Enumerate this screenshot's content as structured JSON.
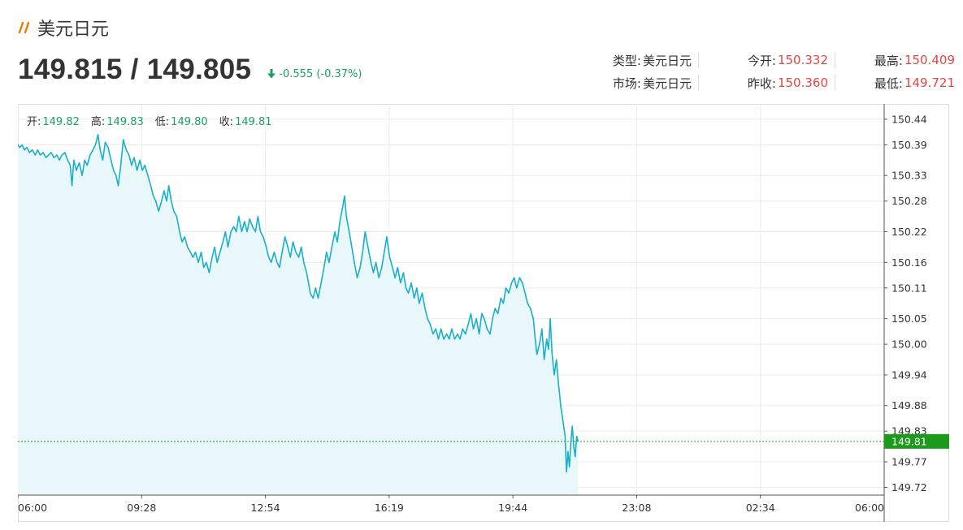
{
  "header": {
    "title": "美元日元",
    "price": "149.815 / 149.805",
    "change": "-0.555 (-0.37%)"
  },
  "info": {
    "type_label": "类型:",
    "type_value": "美元日元",
    "open_label": "今开:",
    "open_value": "150.332",
    "high_label": "最高:",
    "high_value": "150.409",
    "market_label": "市场:",
    "market_value": "美元日元",
    "prev_close_label": "昨收:",
    "prev_close_value": "150.360",
    "low_label": "最低:",
    "low_value": "149.721"
  },
  "ohlc": {
    "open_label": "开:",
    "open": "149.82",
    "high_label": "高:",
    "high": "149.83",
    "low_label": "低:",
    "low": "149.80",
    "close_label": "收:",
    "close": "149.81"
  },
  "colors": {
    "line": "#19b0c8",
    "fill": "#e8f8fa",
    "down": "#1aa260",
    "up": "#e64545",
    "current_price_tag": "#1c9a1c",
    "title_icon": "#f07c00"
  },
  "chart_data": {
    "type": "area",
    "x_ticks": [
      "06:00",
      "09:28",
      "12:54",
      "16:19",
      "19:44",
      "23:08",
      "02:34",
      "06:00"
    ],
    "y_ticks": [
      "150.44",
      "150.39",
      "150.33",
      "150.28",
      "150.22",
      "150.16",
      "150.11",
      "150.05",
      "150.00",
      "149.94",
      "149.88",
      "149.83",
      "149.77",
      "149.72"
    ],
    "ylim": [
      149.705,
      150.47
    ],
    "xlim_hours": [
      0,
      24
    ],
    "current_price": "149.81",
    "grid": true,
    "series": [
      {
        "values": [
          [
            0.0,
            150.39
          ],
          [
            0.05,
            150.385
          ],
          [
            0.12,
            150.39
          ],
          [
            0.18,
            150.38
          ],
          [
            0.25,
            150.385
          ],
          [
            0.32,
            150.375
          ],
          [
            0.4,
            150.38
          ],
          [
            0.48,
            150.37
          ],
          [
            0.55,
            150.38
          ],
          [
            0.62,
            150.37
          ],
          [
            0.7,
            150.375
          ],
          [
            0.78,
            150.365
          ],
          [
            0.85,
            150.37
          ],
          [
            0.92,
            150.375
          ],
          [
            1.0,
            150.365
          ],
          [
            1.08,
            150.37
          ],
          [
            1.15,
            150.36
          ],
          [
            1.22,
            150.37
          ],
          [
            1.3,
            150.375
          ],
          [
            1.38,
            150.36
          ],
          [
            1.45,
            150.35
          ],
          [
            1.5,
            150.31
          ],
          [
            1.55,
            150.36
          ],
          [
            1.62,
            150.34
          ],
          [
            1.7,
            150.355
          ],
          [
            1.78,
            150.33
          ],
          [
            1.85,
            150.36
          ],
          [
            1.92,
            150.35
          ],
          [
            2.0,
            150.37
          ],
          [
            2.08,
            150.38
          ],
          [
            2.15,
            150.39
          ],
          [
            2.22,
            150.41
          ],
          [
            2.28,
            150.38
          ],
          [
            2.35,
            150.36
          ],
          [
            2.42,
            150.395
          ],
          [
            2.5,
            150.385
          ],
          [
            2.58,
            150.36
          ],
          [
            2.65,
            150.34
          ],
          [
            2.72,
            150.33
          ],
          [
            2.78,
            150.31
          ],
          [
            2.85,
            150.35
          ],
          [
            2.92,
            150.4
          ],
          [
            3.0,
            150.38
          ],
          [
            3.08,
            150.37
          ],
          [
            3.15,
            150.35
          ],
          [
            3.22,
            150.365
          ],
          [
            3.3,
            150.34
          ],
          [
            3.38,
            150.36
          ],
          [
            3.45,
            150.34
          ],
          [
            3.52,
            150.35
          ],
          [
            3.6,
            150.33
          ],
          [
            3.68,
            150.31
          ],
          [
            3.75,
            150.29
          ],
          [
            3.82,
            150.28
          ],
          [
            3.9,
            150.26
          ],
          [
            3.98,
            150.28
          ],
          [
            4.05,
            150.3
          ],
          [
            4.12,
            150.28
          ],
          [
            4.18,
            150.31
          ],
          [
            4.25,
            150.28
          ],
          [
            4.32,
            150.26
          ],
          [
            4.4,
            150.25
          ],
          [
            4.48,
            150.22
          ],
          [
            4.55,
            150.2
          ],
          [
            4.62,
            150.21
          ],
          [
            4.7,
            150.19
          ],
          [
            4.78,
            150.18
          ],
          [
            4.85,
            150.17
          ],
          [
            4.92,
            150.18
          ],
          [
            5.0,
            150.16
          ],
          [
            5.08,
            150.18
          ],
          [
            5.15,
            150.15
          ],
          [
            5.22,
            150.16
          ],
          [
            5.3,
            150.14
          ],
          [
            5.38,
            150.17
          ],
          [
            5.45,
            150.19
          ],
          [
            5.52,
            150.16
          ],
          [
            5.6,
            150.18
          ],
          [
            5.68,
            150.2
          ],
          [
            5.75,
            150.22
          ],
          [
            5.82,
            150.19
          ],
          [
            5.9,
            150.22
          ],
          [
            5.98,
            150.23
          ],
          [
            6.05,
            150.22
          ],
          [
            6.12,
            150.25
          ],
          [
            6.2,
            150.22
          ],
          [
            6.28,
            150.24
          ],
          [
            6.35,
            150.22
          ],
          [
            6.42,
            150.245
          ],
          [
            6.5,
            150.23
          ],
          [
            6.58,
            150.22
          ],
          [
            6.65,
            150.25
          ],
          [
            6.72,
            150.22
          ],
          [
            6.8,
            150.21
          ],
          [
            6.88,
            150.19
          ],
          [
            6.95,
            150.17
          ],
          [
            7.02,
            150.16
          ],
          [
            7.1,
            150.18
          ],
          [
            7.18,
            150.16
          ],
          [
            7.25,
            150.15
          ],
          [
            7.32,
            150.18
          ],
          [
            7.4,
            150.21
          ],
          [
            7.48,
            150.19
          ],
          [
            7.55,
            150.17
          ],
          [
            7.62,
            150.2
          ],
          [
            7.7,
            150.18
          ],
          [
            7.78,
            150.17
          ],
          [
            7.85,
            150.19
          ],
          [
            7.92,
            150.16
          ],
          [
            8.0,
            150.14
          ],
          [
            8.05,
            150.12
          ],
          [
            8.1,
            150.1
          ],
          [
            8.18,
            150.09
          ],
          [
            8.25,
            150.11
          ],
          [
            8.32,
            150.09
          ],
          [
            8.4,
            150.12
          ],
          [
            8.48,
            150.15
          ],
          [
            8.55,
            150.18
          ],
          [
            8.62,
            150.16
          ],
          [
            8.7,
            150.19
          ],
          [
            8.78,
            150.22
          ],
          [
            8.85,
            150.2
          ],
          [
            8.92,
            150.24
          ],
          [
            9.0,
            150.27
          ],
          [
            9.05,
            150.29
          ],
          [
            9.1,
            150.25
          ],
          [
            9.18,
            150.22
          ],
          [
            9.25,
            150.19
          ],
          [
            9.32,
            150.16
          ],
          [
            9.4,
            150.13
          ],
          [
            9.48,
            150.15
          ],
          [
            9.55,
            150.18
          ],
          [
            9.62,
            150.22
          ],
          [
            9.7,
            150.19
          ],
          [
            9.78,
            150.16
          ],
          [
            9.85,
            150.14
          ],
          [
            9.92,
            150.16
          ],
          [
            10.0,
            150.13
          ],
          [
            10.08,
            150.15
          ],
          [
            10.15,
            150.18
          ],
          [
            10.22,
            150.21
          ],
          [
            10.3,
            150.17
          ],
          [
            10.38,
            150.15
          ],
          [
            10.45,
            150.13
          ],
          [
            10.52,
            150.15
          ],
          [
            10.6,
            150.12
          ],
          [
            10.68,
            150.14
          ],
          [
            10.75,
            150.11
          ],
          [
            10.82,
            150.1
          ],
          [
            10.9,
            150.12
          ],
          [
            10.98,
            150.09
          ],
          [
            11.05,
            150.11
          ],
          [
            11.12,
            150.08
          ],
          [
            11.2,
            150.1
          ],
          [
            11.28,
            150.07
          ],
          [
            11.35,
            150.05
          ],
          [
            11.42,
            150.04
          ],
          [
            11.5,
            150.02
          ],
          [
            11.58,
            150.03
          ],
          [
            11.65,
            150.01
          ],
          [
            11.72,
            150.03
          ],
          [
            11.8,
            150.01
          ],
          [
            11.88,
            150.02
          ],
          [
            11.95,
            150.01
          ],
          [
            12.02,
            150.03
          ],
          [
            12.1,
            150.01
          ],
          [
            12.18,
            150.02
          ],
          [
            12.25,
            150.01
          ],
          [
            12.32,
            150.03
          ],
          [
            12.4,
            150.02
          ],
          [
            12.48,
            150.04
          ],
          [
            12.55,
            150.06
          ],
          [
            12.62,
            150.03
          ],
          [
            12.7,
            150.05
          ],
          [
            12.78,
            150.02
          ],
          [
            12.85,
            150.06
          ],
          [
            12.92,
            150.05
          ],
          [
            13.0,
            150.03
          ],
          [
            13.08,
            150.02
          ],
          [
            13.15,
            150.05
          ],
          [
            13.22,
            150.07
          ],
          [
            13.3,
            150.06
          ],
          [
            13.38,
            150.09
          ],
          [
            13.45,
            150.08
          ],
          [
            13.52,
            150.11
          ],
          [
            13.6,
            150.1
          ],
          [
            13.68,
            150.12
          ],
          [
            13.75,
            150.13
          ],
          [
            13.82,
            150.11
          ],
          [
            13.9,
            150.13
          ],
          [
            13.98,
            150.12
          ],
          [
            14.05,
            150.1
          ],
          [
            14.12,
            150.08
          ],
          [
            14.2,
            150.07
          ],
          [
            14.28,
            150.05
          ],
          [
            14.32,
            150.02
          ],
          [
            14.38,
            149.98
          ],
          [
            14.45,
            150.0
          ],
          [
            14.52,
            150.03
          ],
          [
            14.58,
            149.97
          ],
          [
            14.65,
            150.01
          ],
          [
            14.7,
            149.99
          ],
          [
            14.75,
            150.05
          ],
          [
            14.8,
            149.98
          ],
          [
            14.86,
            149.94
          ],
          [
            14.92,
            149.97
          ],
          [
            14.98,
            149.92
          ],
          [
            15.04,
            149.88
          ],
          [
            15.1,
            149.85
          ],
          [
            15.16,
            149.82
          ],
          [
            15.2,
            149.75
          ],
          [
            15.24,
            149.79
          ],
          [
            15.28,
            149.76
          ],
          [
            15.32,
            149.81
          ],
          [
            15.36,
            149.84
          ],
          [
            15.4,
            149.8
          ],
          [
            15.44,
            149.78
          ],
          [
            15.48,
            149.82
          ],
          [
            15.52,
            149.81
          ]
        ]
      }
    ]
  }
}
